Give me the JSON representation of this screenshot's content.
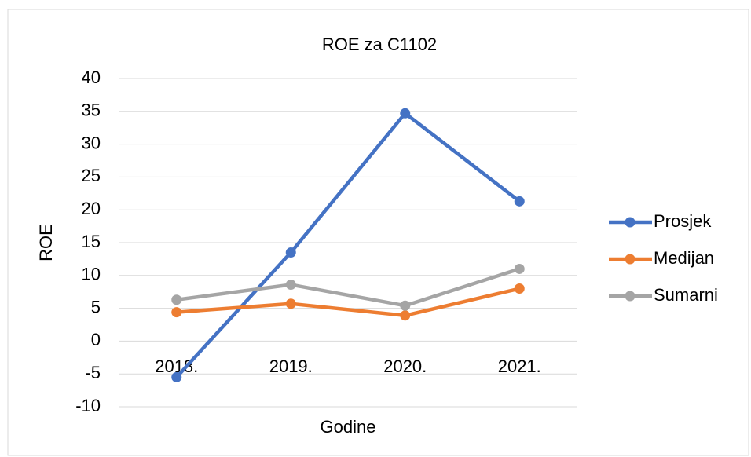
{
  "chart_data": {
    "type": "line",
    "title": "ROE za C1102",
    "x_label": "Godine",
    "y_label": "ROE",
    "categories": [
      "2018.",
      "2019.",
      "2020.",
      "2021."
    ],
    "series": [
      {
        "name": "Prosjek",
        "color": "#4472c4",
        "values": [
          -5.5,
          13.5,
          34.7,
          21.3
        ]
      },
      {
        "name": "Medijan",
        "color": "#ed7d31",
        "values": [
          4.4,
          5.7,
          3.9,
          8.0
        ]
      },
      {
        "name": "Sumarni",
        "color": "#a5a5a5",
        "values": [
          6.3,
          8.6,
          5.4,
          11.0
        ]
      }
    ],
    "ylim": [
      -10,
      40
    ],
    "yticks": [
      -10,
      -5,
      0,
      5,
      10,
      15,
      20,
      25,
      30,
      35,
      40
    ],
    "grid": true,
    "legend": "right"
  }
}
